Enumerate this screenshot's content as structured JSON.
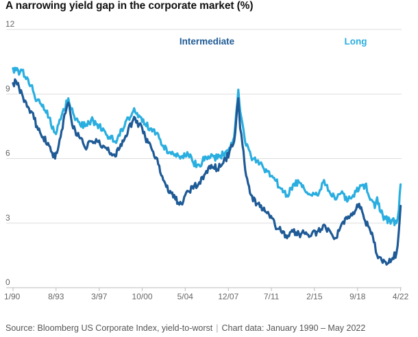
{
  "chart_data": {
    "type": "line",
    "title": "A narrowing yield gap in the corporate market (%)",
    "xlabel": "",
    "ylabel": "",
    "ylim": [
      0,
      12
    ],
    "yticks": [
      0,
      3,
      6,
      9,
      12
    ],
    "x_range": [
      1990.0,
      2022.33
    ],
    "x_ticks": [
      {
        "label": "1/90",
        "value": 1990.0
      },
      {
        "label": "8/93",
        "value": 1993.58
      },
      {
        "label": "3/97",
        "value": 1997.17
      },
      {
        "label": "10/00",
        "value": 2000.75
      },
      {
        "label": "5/04",
        "value": 2004.33
      },
      {
        "label": "12/07",
        "value": 2007.92
      },
      {
        "label": "7/11",
        "value": 2011.5
      },
      {
        "label": "2/15",
        "value": 2015.08
      },
      {
        "label": "9/18",
        "value": 2018.67
      },
      {
        "label": "4/22",
        "value": 2022.25
      }
    ],
    "grid": true,
    "legend": "top-center",
    "series": [
      {
        "name": "Long",
        "color": "#2aaee0",
        "x": [
          1990.0,
          1990.25,
          1990.5,
          1990.75,
          1991.0,
          1991.5,
          1992.0,
          1992.5,
          1993.0,
          1993.5,
          1993.8,
          1994.2,
          1994.6,
          1995.0,
          1995.5,
          1996.0,
          1996.5,
          1997.0,
          1997.5,
          1998.0,
          1998.5,
          1998.8,
          1999.2,
          1999.6,
          2000.0,
          2000.5,
          2001.0,
          2001.5,
          2002.0,
          2002.5,
          2003.0,
          2003.5,
          2004.0,
          2004.5,
          2005.0,
          2005.5,
          2006.0,
          2006.5,
          2007.0,
          2007.5,
          2008.0,
          2008.4,
          2008.75,
          2008.9,
          2009.1,
          2009.4,
          2009.8,
          2010.3,
          2010.8,
          2011.3,
          2011.8,
          2012.3,
          2012.8,
          2013.3,
          2013.8,
          2014.3,
          2014.8,
          2015.3,
          2015.8,
          2016.3,
          2016.8,
          2017.3,
          2017.8,
          2018.3,
          2018.8,
          2019.3,
          2019.8,
          2020.1,
          2020.3,
          2020.6,
          2021.0,
          2021.5,
          2021.9,
          2022.1,
          2022.25
        ],
        "values": [
          10.2,
          10.1,
          9.9,
          10.1,
          9.8,
          9.4,
          8.7,
          8.5,
          7.9,
          7.2,
          7.6,
          8.3,
          8.8,
          8.1,
          7.7,
          7.5,
          7.8,
          7.6,
          7.4,
          7.0,
          6.8,
          7.1,
          7.4,
          7.9,
          8.2,
          8.0,
          7.6,
          7.4,
          7.2,
          6.6,
          6.3,
          6.2,
          6.1,
          6.3,
          5.8,
          5.7,
          6.1,
          6.2,
          6.0,
          6.2,
          6.5,
          7.0,
          9.2,
          8.2,
          7.6,
          6.6,
          6.1,
          5.9,
          5.6,
          5.4,
          5.0,
          4.6,
          4.3,
          4.8,
          4.9,
          4.5,
          4.3,
          4.3,
          4.9,
          4.5,
          4.1,
          4.4,
          4.0,
          4.3,
          4.6,
          4.8,
          4.1,
          3.7,
          4.2,
          3.5,
          3.2,
          3.1,
          3.0,
          3.6,
          4.8
        ]
      },
      {
        "name": "Intermediate",
        "color": "#1e5a96",
        "x": [
          1990.0,
          1990.25,
          1990.5,
          1990.75,
          1991.0,
          1991.5,
          1992.0,
          1992.5,
          1993.0,
          1993.5,
          1993.8,
          1994.2,
          1994.6,
          1995.0,
          1995.5,
          1996.0,
          1996.5,
          1997.0,
          1997.5,
          1998.0,
          1998.5,
          1998.8,
          1999.2,
          1999.6,
          2000.0,
          2000.5,
          2001.0,
          2001.5,
          2002.0,
          2002.5,
          2003.0,
          2003.5,
          2004.0,
          2004.5,
          2005.0,
          2005.5,
          2006.0,
          2006.5,
          2007.0,
          2007.5,
          2008.0,
          2008.4,
          2008.75,
          2008.9,
          2009.1,
          2009.4,
          2009.8,
          2010.3,
          2010.8,
          2011.3,
          2011.8,
          2012.3,
          2012.8,
          2013.3,
          2013.8,
          2014.3,
          2014.8,
          2015.3,
          2015.8,
          2016.3,
          2016.8,
          2017.3,
          2017.8,
          2018.3,
          2018.8,
          2019.3,
          2019.8,
          2020.1,
          2020.3,
          2020.6,
          2021.0,
          2021.5,
          2021.9,
          2022.1,
          2022.25
        ],
        "values": [
          9.5,
          9.6,
          9.3,
          9.0,
          8.7,
          8.2,
          7.5,
          7.0,
          6.6,
          6.0,
          6.6,
          7.8,
          8.6,
          7.4,
          7.0,
          6.5,
          6.8,
          6.8,
          6.6,
          6.3,
          6.1,
          6.4,
          6.8,
          7.4,
          7.8,
          7.6,
          7.0,
          6.5,
          6.0,
          5.0,
          4.4,
          4.1,
          3.9,
          4.5,
          4.6,
          4.9,
          5.3,
          5.7,
          5.5,
          5.8,
          6.3,
          6.8,
          8.8,
          7.4,
          6.6,
          5.2,
          4.3,
          3.9,
          3.6,
          3.4,
          2.9,
          2.6,
          2.3,
          2.6,
          2.5,
          2.5,
          2.4,
          2.6,
          2.9,
          2.7,
          2.3,
          2.9,
          3.2,
          3.5,
          3.9,
          3.1,
          2.5,
          2.1,
          1.5,
          1.4,
          1.2,
          1.3,
          1.6,
          2.6,
          3.8
        ]
      }
    ]
  },
  "footer": {
    "source": "Source: Bloomberg US Corporate Index, yield-to-worst",
    "separator": "|",
    "chart_data_range": "Chart data: January 1990 – May 2022"
  }
}
